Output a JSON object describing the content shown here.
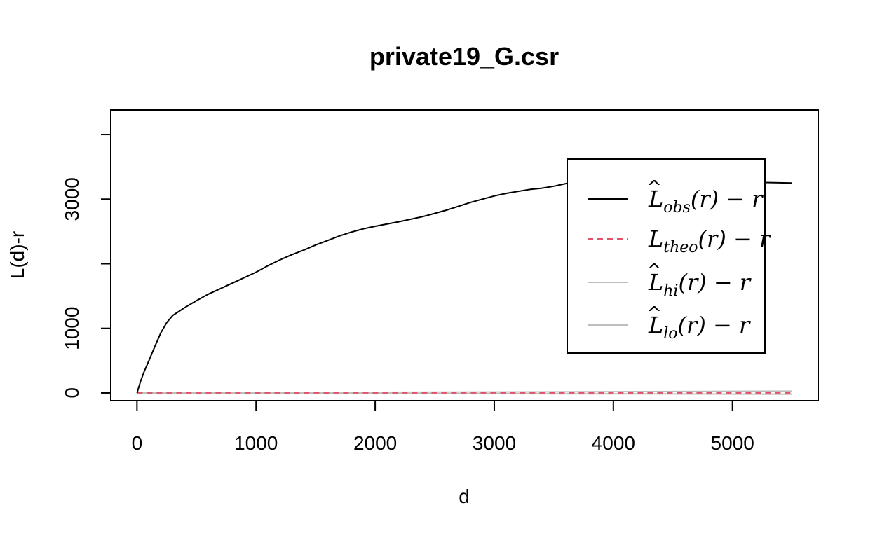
{
  "chart_data": {
    "type": "line",
    "title": "private19_G.csr",
    "xlabel": "d",
    "ylabel": "L(d)-r",
    "xlim": [
      -220,
      5720
    ],
    "ylim": [
      -120,
      4380
    ],
    "x_ticks": [
      0,
      1000,
      2000,
      3000,
      4000,
      5000
    ],
    "x_tick_labels": [
      "0",
      "1000",
      "2000",
      "3000",
      "4000",
      "5000"
    ],
    "y_ticks": [
      0,
      1000,
      2000,
      3000,
      4000
    ],
    "y_tick_labels": [
      "0",
      "1000",
      "",
      "3000",
      ""
    ],
    "legend_position": "top-right",
    "series": [
      {
        "name": "obs",
        "legend_label": "L̂obs(r) − r",
        "legend_base": "L",
        "legend_sub": "obs",
        "legend_hat": true,
        "color": "#000000",
        "style": "solid",
        "x": [
          0,
          30,
          60,
          100,
          150,
          200,
          250,
          300,
          400,
          500,
          600,
          800,
          1000,
          1100,
          1200,
          1300,
          1400,
          1500,
          1600,
          1700,
          1800,
          1900,
          2000,
          2200,
          2400,
          2500,
          2600,
          2700,
          2800,
          2900,
          3000,
          3100,
          3200,
          3300,
          3400,
          3500,
          3600,
          3700,
          3800,
          3900,
          4000,
          4100,
          4200,
          4400,
          4600,
          4800,
          5000,
          5200,
          5500
        ],
        "y": [
          0,
          180,
          330,
          500,
          720,
          930,
          1090,
          1200,
          1320,
          1430,
          1530,
          1700,
          1870,
          1970,
          2060,
          2140,
          2210,
          2290,
          2360,
          2430,
          2490,
          2540,
          2580,
          2650,
          2730,
          2780,
          2830,
          2890,
          2950,
          3000,
          3050,
          3090,
          3120,
          3150,
          3170,
          3200,
          3240,
          3280,
          3310,
          3330,
          3340,
          3340,
          3340,
          3330,
          3310,
          3290,
          3270,
          3260,
          3250
        ]
      },
      {
        "name": "theo",
        "legend_label": "Ltheo(r) − r",
        "legend_base": "L",
        "legend_sub": "theo",
        "legend_hat": false,
        "color": "#DF536B",
        "style": "dashed",
        "x": [
          0,
          5500
        ],
        "y": [
          0,
          0
        ]
      },
      {
        "name": "hi",
        "legend_label": "L̂hi(r) − r",
        "legend_base": "L",
        "legend_sub": "hi",
        "legend_hat": true,
        "color": "#BEBEBE",
        "style": "solid",
        "x": [
          0,
          1000,
          2000,
          3000,
          3800,
          4500,
          5000,
          5500
        ],
        "y": [
          5,
          8,
          10,
          14,
          18,
          22,
          25,
          28
        ]
      },
      {
        "name": "lo",
        "legend_label": "L̂lo(r) − r",
        "legend_base": "L",
        "legend_sub": "lo",
        "legend_hat": true,
        "color": "#BEBEBE",
        "style": "solid",
        "x": [
          0,
          1000,
          2000,
          3000,
          3800,
          4500,
          5000,
          5500
        ],
        "y": [
          -5,
          -8,
          -10,
          -12,
          -14,
          -16,
          -18,
          -20
        ]
      }
    ]
  }
}
